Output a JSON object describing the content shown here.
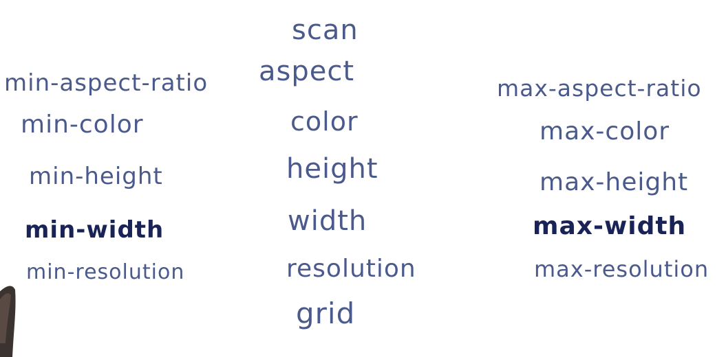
{
  "colors": {
    "ink": "#4b5a8c",
    "ink_emphasis": "#1a2356",
    "background": "#ffffff",
    "hand": "#3b3330"
  },
  "center": {
    "scan": "scan",
    "aspect": "aspect",
    "color": "color",
    "height": "height",
    "width": "width",
    "resolution": "resolution",
    "grid": "grid"
  },
  "left": {
    "aspect": "min-aspect-ratio",
    "color": "min-color",
    "height": "min-height",
    "width": "min-width",
    "resolution": "min-resolution"
  },
  "right": {
    "aspect": "max-aspect-ratio",
    "color": "max-color",
    "height": "max-height",
    "width": "max-width",
    "resolution": "max-resolution"
  }
}
